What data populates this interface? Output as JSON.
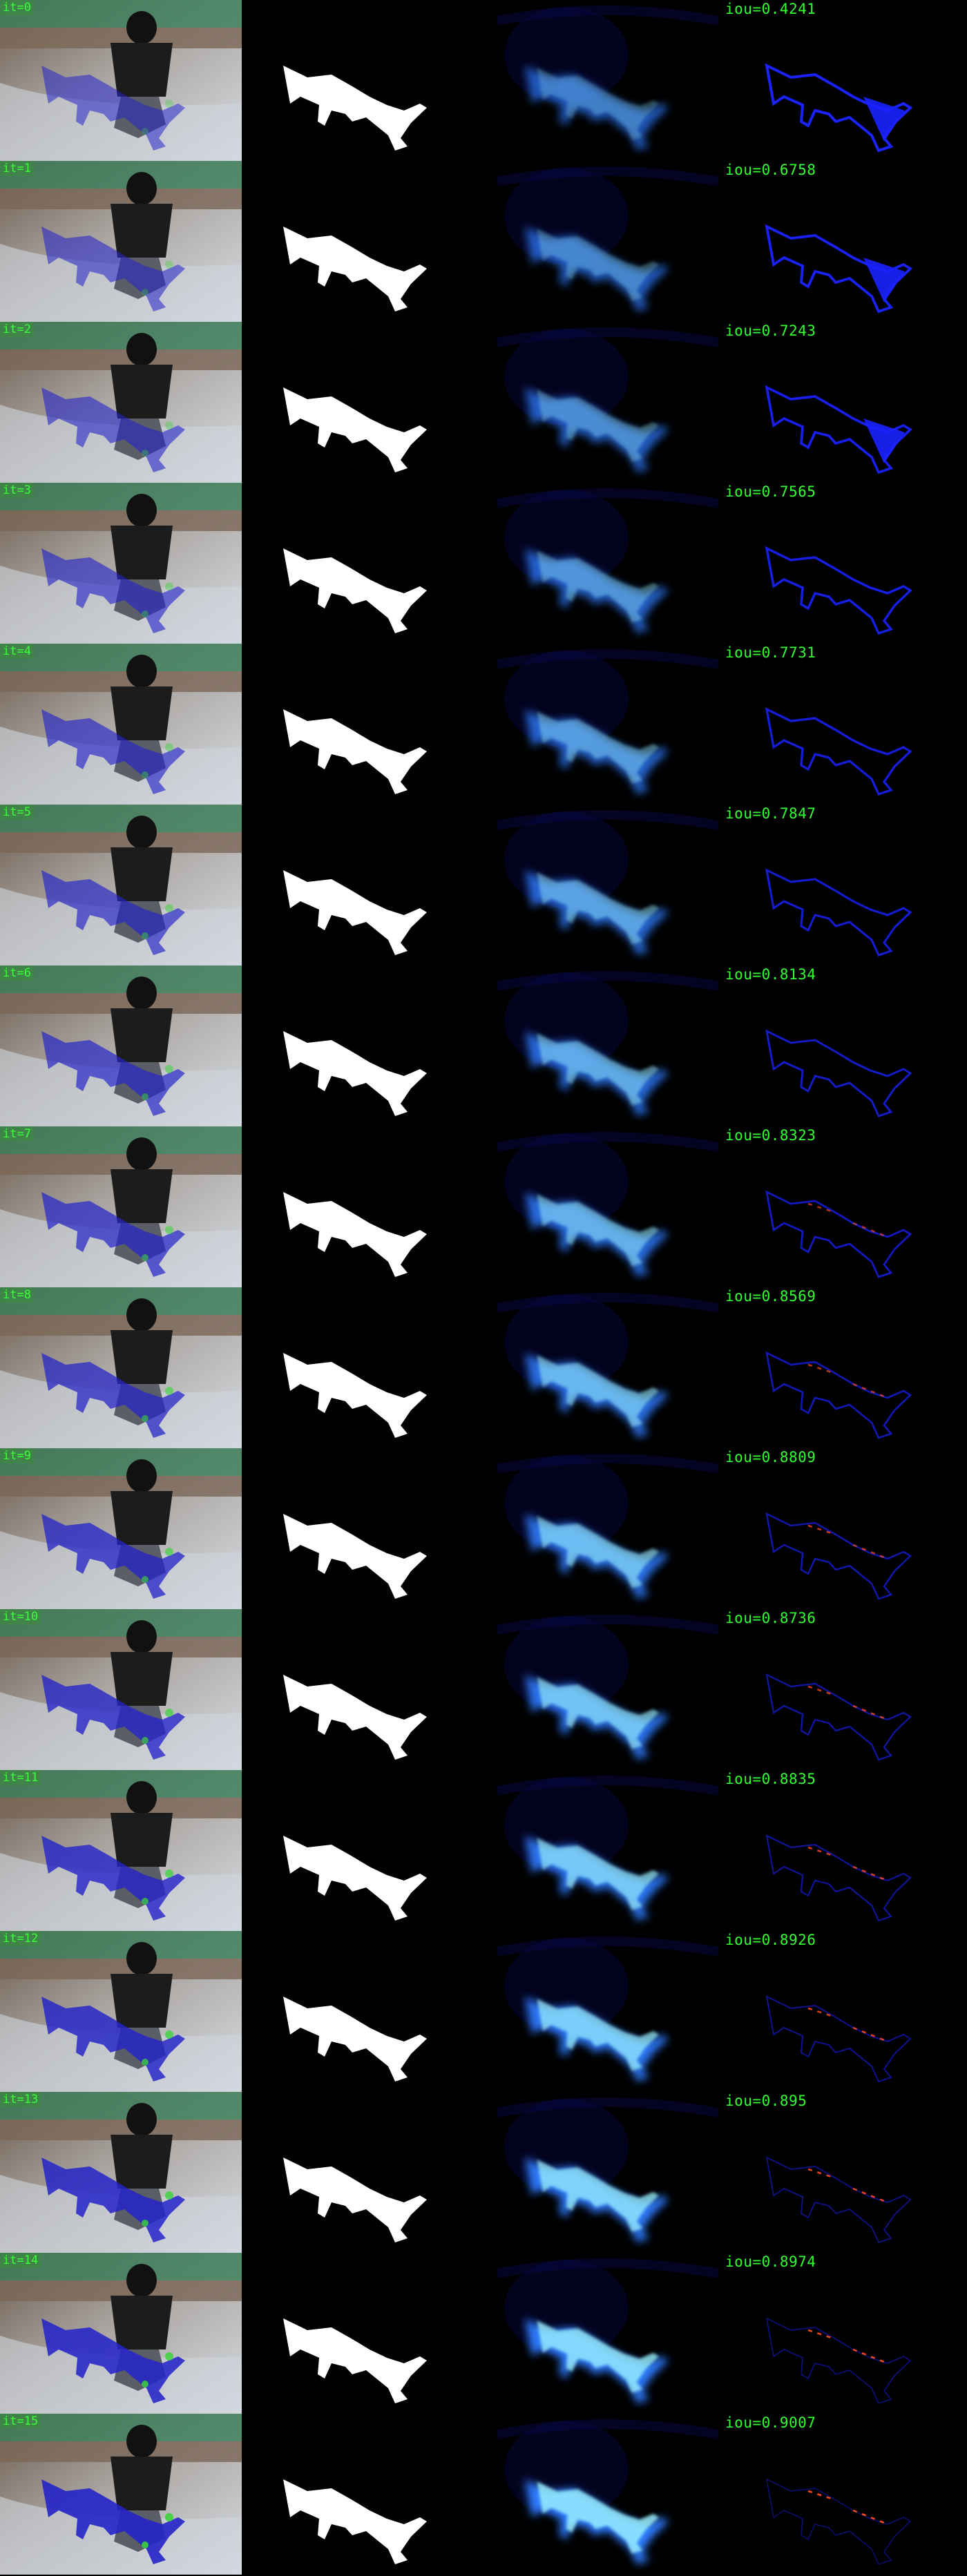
{
  "rows": [
    {
      "step": "0",
      "iou": "iou=0.4241"
    },
    {
      "step": "1",
      "iou": "iou=0.6758"
    },
    {
      "step": "2",
      "iou": "iou=0.7243"
    },
    {
      "step": "3",
      "iou": "iou=0.7565"
    },
    {
      "step": "4",
      "iou": "iou=0.7731"
    },
    {
      "step": "5",
      "iou": "iou=0.7847"
    },
    {
      "step": "6",
      "iou": "iou=0.8134"
    },
    {
      "step": "7",
      "iou": "iou=0.8323"
    },
    {
      "step": "8",
      "iou": "iou=0.8569"
    },
    {
      "step": "9",
      "iou": "iou=0.8809"
    },
    {
      "step": "10",
      "iou": "iou=0.8736"
    },
    {
      "step": "11",
      "iou": "iou=0.8835"
    },
    {
      "step": "12",
      "iou": "iou=0.8926"
    },
    {
      "step": "13",
      "iou": "iou=0.895"
    },
    {
      "step": "14",
      "iou": "iou=0.8974"
    },
    {
      "step": "15",
      "iou": "iou=0.9007"
    }
  ],
  "colors": {
    "label_green": "#32ff32",
    "mask_white": "#ffffff",
    "heat_blue": "#2f7bff",
    "heat_core": "#9ff6ff",
    "error_blue": "#1a22ff",
    "error_red": "#ff4a1a",
    "pred_overlay_blue": "#2424c8",
    "pred_overlay_green": "#3cd23c"
  }
}
